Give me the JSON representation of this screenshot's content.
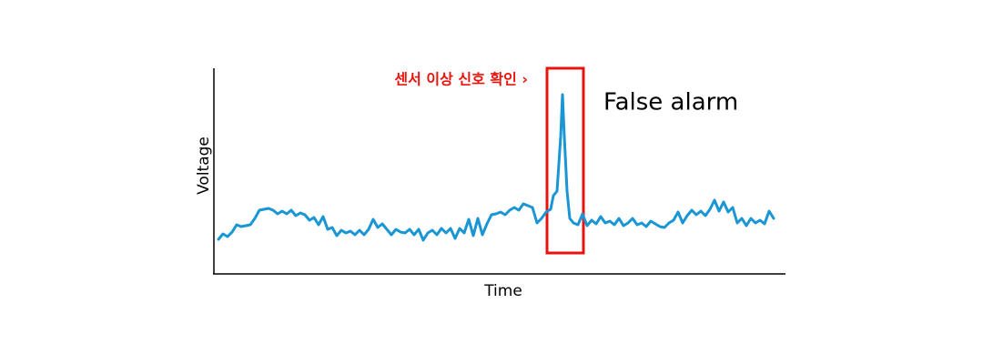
{
  "chart_data": {
    "type": "line",
    "xlabel": "Time",
    "ylabel": "Voltage",
    "annotations": [
      "센서 이상 신호 확인 ›",
      "False alarm"
    ],
    "color": "#1a96d4",
    "annotation_color": "#e8130c",
    "xlim": [
      0,
      627
    ],
    "ylim": [
      0,
      225
    ],
    "x": [
      5,
      10,
      15,
      20,
      25,
      30,
      35,
      40,
      45,
      50,
      55,
      60,
      65,
      70,
      75,
      80,
      85,
      90,
      95,
      100,
      105,
      110,
      115,
      120,
      125,
      130,
      135,
      140,
      145,
      150,
      155,
      160,
      165,
      170,
      175,
      180,
      185,
      190,
      195,
      200,
      205,
      210,
      215,
      220,
      225,
      230,
      235,
      240,
      245,
      250,
      255,
      260,
      265,
      270,
      275,
      280,
      285,
      290,
      295,
      300,
      305,
      310,
      315,
      320,
      325,
      330,
      335,
      340,
      345,
      350,
      355,
      360,
      365,
      370,
      373,
      377,
      381,
      383,
      385,
      388,
      391,
      395,
      400,
      405,
      410,
      415,
      420,
      425,
      430,
      435,
      440,
      445,
      450,
      455,
      460,
      465,
      470,
      475,
      480,
      485,
      490,
      495,
      500,
      505,
      510,
      515,
      520,
      525,
      530,
      535,
      540,
      545,
      550,
      555,
      560,
      565,
      570,
      575,
      580,
      585,
      590,
      595,
      600,
      605,
      610,
      615
    ],
    "values": [
      37,
      43,
      40,
      45,
      53,
      51,
      52,
      53,
      60,
      69,
      70,
      71,
      69,
      65,
      68,
      65,
      69,
      63,
      66,
      64,
      58,
      61,
      53,
      62,
      48,
      50,
      41,
      47,
      44,
      46,
      42,
      47,
      42,
      48,
      59,
      50,
      54,
      48,
      42,
      48,
      45,
      44,
      48,
      42,
      48,
      36,
      44,
      47,
      42,
      49,
      44,
      49,
      38,
      49,
      44,
      59,
      41,
      60,
      42,
      54,
      64,
      65,
      67,
      64,
      69,
      72,
      69,
      76,
      74,
      72,
      55,
      60,
      67,
      70,
      85,
      90,
      150,
      196,
      150,
      90,
      60,
      55,
      53,
      65,
      52,
      58,
      54,
      62,
      55,
      57,
      53,
      60,
      52,
      55,
      60,
      53,
      55,
      51,
      57,
      54,
      51,
      50,
      55,
      58,
      67,
      55,
      63,
      69,
      64,
      68,
      63,
      70,
      80,
      68,
      78,
      67,
      72,
      55,
      60,
      52,
      60,
      55,
      58,
      54,
      68,
      60
    ]
  }
}
